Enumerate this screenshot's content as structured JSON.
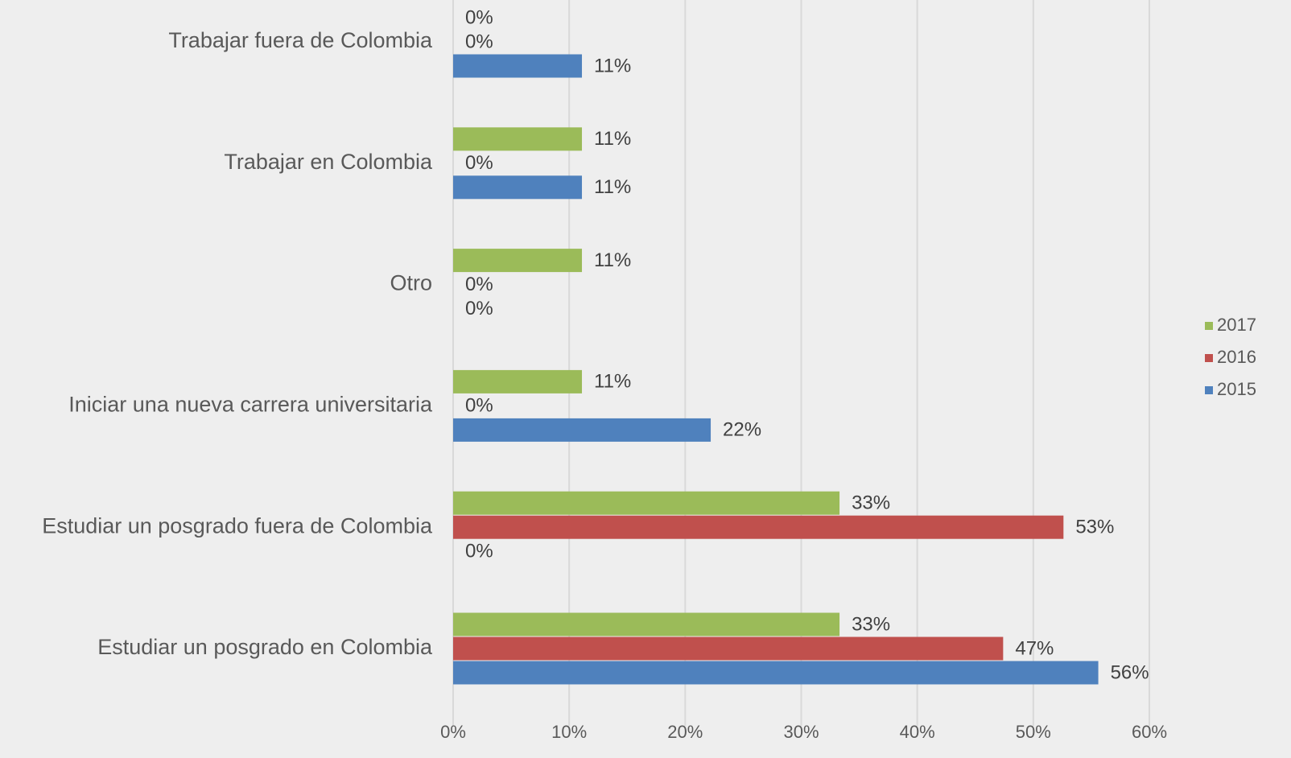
{
  "chart_data": {
    "type": "barh",
    "categories": [
      "Trabajar fuera de Colombia",
      "Trabajar en Colombia",
      "Otro",
      "Iniciar una nueva carrera universitaria",
      "Estudiar un posgrado fuera de Colombia",
      "Estudiar un posgrado en Colombia"
    ],
    "series": [
      {
        "name": "2017",
        "color": "#9bbb59",
        "values": [
          0,
          11.1,
          11.1,
          11.1,
          33.3,
          33.3
        ],
        "value_labels": [
          "0%",
          "11%",
          "11%",
          "11%",
          "33%",
          "33%"
        ]
      },
      {
        "name": "2016",
        "color": "#c0504d",
        "values": [
          0,
          0,
          0,
          0,
          52.6,
          47.4
        ],
        "value_labels": [
          "0%",
          "0%",
          "0%",
          "0%",
          "53%",
          "47%"
        ]
      },
      {
        "name": "2015",
        "color": "#4f81bd",
        "values": [
          11.1,
          11.1,
          0,
          22.2,
          0,
          55.6
        ],
        "value_labels": [
          "11%",
          "11%",
          "0%",
          "22%",
          "0%",
          "56%"
        ]
      }
    ],
    "xlim": [
      0,
      60
    ],
    "xticks": [
      {
        "value": 0,
        "label": "0%"
      },
      {
        "value": 10,
        "label": "10%"
      },
      {
        "value": 20,
        "label": "20%"
      },
      {
        "value": 30,
        "label": "30%"
      },
      {
        "value": 40,
        "label": "40%"
      },
      {
        "value": 50,
        "label": "50%"
      },
      {
        "value": 60,
        "label": "60%"
      }
    ],
    "grid": true,
    "legend": "right"
  }
}
